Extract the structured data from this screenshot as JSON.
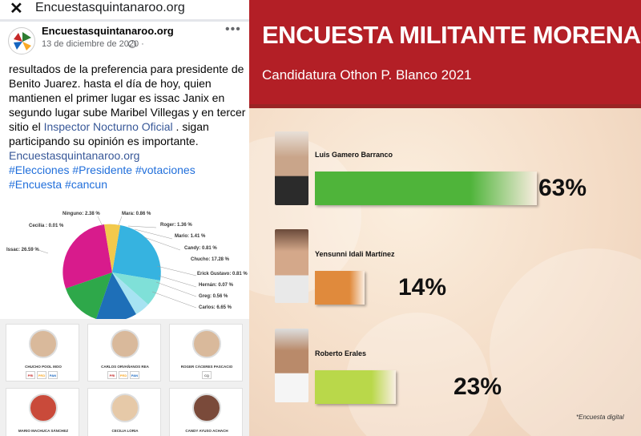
{
  "browser": {
    "url": "Encuestasquintanaroo.org"
  },
  "post": {
    "page_name": "Encuestasquintanaroo.org",
    "date": "13 de diciembre de 2020 ·",
    "text_main": "resultados de la preferencia para presidente de Benito Juarez. hasta el día de hoy, quien mantienen el primer lugar es issac Janix en segundo lugar sube Maribel Villegas y en tercer sitio el ",
    "mention": "Inspector Nocturno Oficial",
    "text_after": " . sigan participando su opinión es importante.",
    "link": "Encuestasquintanaroo.org",
    "hashtags_line1": "#Elecciones #Presidente #votaciones",
    "hashtags_line2": "#Encuesta #cancun"
  },
  "pie": {
    "labels": [
      "Ninguno: 2.38 %",
      "Mara: 0.86 %",
      "Cecilia : 0.01 %",
      "Roger: 1.36 %",
      "Mario: 1.41 %",
      "Candy: 0.81 %",
      "Issac: 26.59 %",
      "Chucho: 17.28 %",
      "Erick Gustavo: 0.81 %",
      "Hernán: 0.07 %",
      "Greg: 0.56 %",
      "Carlos: 6.65 %"
    ]
  },
  "cards": [
    {
      "name": "CHUCHO POOL MOO",
      "logos": [
        "PRI",
        "PRD",
        "PAN"
      ]
    },
    {
      "name": "CARLOS ORVAÑANOS REA",
      "logos": [
        "PRI",
        "PRD",
        "PAN"
      ]
    },
    {
      "name": "ROGER CÁCERES PASCACIO",
      "logos": [
        "CQ"
      ]
    },
    {
      "name": "MARIO MACHUCA SÁNCHEZ",
      "logos": []
    },
    {
      "name": "CECILIA LORIA",
      "logos": []
    },
    {
      "name": "CANDY AYUSO ACHACH",
      "logos": []
    }
  ],
  "poll": {
    "title": "ENCUESTA MILITANTE MORENA",
    "subtitle": "Candidatura Othon P. Blanco 2021",
    "candidates": [
      {
        "name": "Luis Gamero Barranco",
        "percent_label": "63%",
        "value": 63,
        "color": "#4fb43a"
      },
      {
        "name": "Yensunni Idali Martínez",
        "percent_label": "14%",
        "value": 14,
        "color": "#e08a3c"
      },
      {
        "name": "Roberto Erales",
        "percent_label": "23%",
        "value": 23,
        "color": "#b9d84a"
      }
    ],
    "footnote": "*Encuesta digital"
  }
}
